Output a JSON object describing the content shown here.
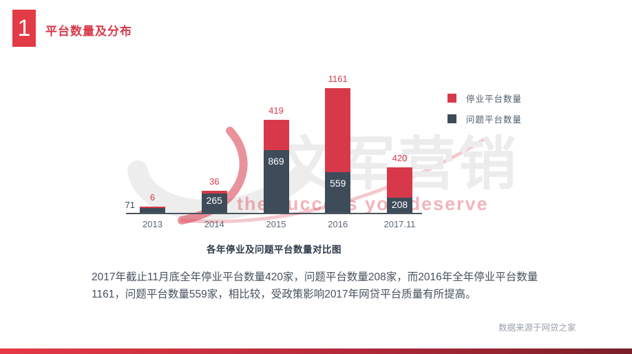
{
  "header": {
    "number": "1",
    "title": "平台数量及分布"
  },
  "legend": [
    {
      "label": "停业平台数量",
      "color": "#d8394a"
    },
    {
      "label": "问题平台数量",
      "color": "#3e4b59"
    }
  ],
  "chart_data": {
    "type": "bar",
    "stacked": true,
    "categories": [
      "2013",
      "2014",
      "2015",
      "2016",
      "2017.11"
    ],
    "series": [
      {
        "name": "停业平台数量",
        "color": "#d8394a",
        "values": [
          6,
          36,
          419,
          1161,
          420
        ]
      },
      {
        "name": "问题平台数量",
        "color": "#3e4b59",
        "values": [
          71,
          265,
          869,
          559,
          208
        ]
      }
    ],
    "title": "各年停业及问题平台数量对比图",
    "xlabel": "",
    "ylabel": "",
    "ylim": [
      0,
      1720
    ],
    "grid": false,
    "legend_position": "upper right",
    "label_style": "停业 values in red above bars; 问题 values in white inside bars (71 shown outside left of 2013 bar)"
  },
  "paragraph": "2017年截止11月底全年停业平台数量420家，问题平台数量208家，而2016年全年停业平台数量1161，问题平台数量559家，相比较，受政策影响2017年网贷平台质量有所提高。",
  "source": "数据来源于网贷之家",
  "watermark": {
    "text": "文军营销",
    "slogan": "the success you deserve"
  },
  "colors": {
    "accent_red": "#d8394a",
    "header_red": "#e23b47",
    "dark_slate": "#3e4b59",
    "axis_line": "#4a545f",
    "footer_gradient": [
      "#e63946",
      "#7a1f28"
    ]
  }
}
